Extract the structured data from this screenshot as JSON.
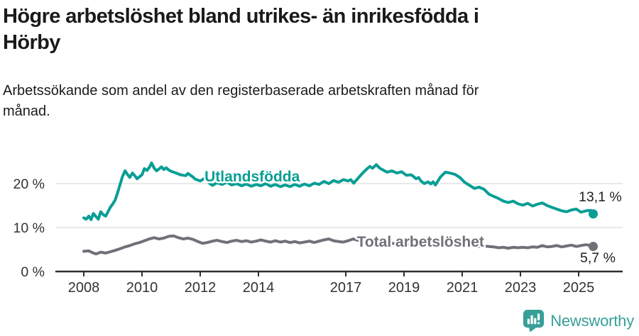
{
  "header": {
    "title_lines": [
      "Högre arbetslöshet bland utrikes- än inrikesfödda i",
      "Hörby"
    ],
    "subtitle_lines": [
      "Arbetssökande som andel av den registerbaserade arbetskraften månad för",
      "månad."
    ]
  },
  "chart_data": {
    "type": "line",
    "title": "Högre arbetslöshet bland utrikes- än inrikesfödda i Hörby",
    "subtitle": "Arbetssökande som andel av den registerbaserade arbetskraften månad för månad.",
    "unit": "%",
    "grid": "horizontal",
    "xlim": [
      2007.85,
      2026.4
    ],
    "ylim": [
      0,
      26
    ],
    "x_ticks": [
      {
        "v": 2008,
        "label": "2008"
      },
      {
        "v": 2010,
        "label": "2010"
      },
      {
        "v": 2012,
        "label": "2012"
      },
      {
        "v": 2014,
        "label": "2014"
      },
      {
        "v": 2017,
        "label": "2017"
      },
      {
        "v": 2019,
        "label": "2019"
      },
      {
        "v": 2021,
        "label": "2021"
      },
      {
        "v": 2023,
        "label": "2023"
      },
      {
        "v": 2025,
        "label": "2025"
      }
    ],
    "y_ticks": [
      {
        "v": 0,
        "label": "0 %"
      },
      {
        "v": 10,
        "label": "10 %"
      },
      {
        "v": 20,
        "label": "20 %"
      }
    ],
    "style": {
      "grid_color": "#e2e2e2",
      "axis_color": "#2f2f2f",
      "tick_label_color": "#333333",
      "end_label_color": "#1f1f1f",
      "background": "#ffffff"
    },
    "series": [
      {
        "name": "Utlandsfödda",
        "color": "#089e94",
        "label": {
          "x": 2012.15,
          "v": 20.5
        },
        "end": {
          "label": "13,1 %",
          "x": 2025.0,
          "v": 16.0
        },
        "end_value": 13.1,
        "points": [
          [
            2008.0,
            12.2
          ],
          [
            2008.08,
            11.9
          ],
          [
            2008.17,
            12.6
          ],
          [
            2008.25,
            11.8
          ],
          [
            2008.33,
            13.2
          ],
          [
            2008.42,
            12.5
          ],
          [
            2008.5,
            11.9
          ],
          [
            2008.58,
            13.6
          ],
          [
            2008.67,
            12.9
          ],
          [
            2008.75,
            12.6
          ],
          [
            2008.92,
            14.7
          ],
          [
            2009.0,
            15.4
          ],
          [
            2009.08,
            16.3
          ],
          [
            2009.17,
            18.1
          ],
          [
            2009.25,
            19.9
          ],
          [
            2009.33,
            21.6
          ],
          [
            2009.42,
            22.9
          ],
          [
            2009.5,
            22.1
          ],
          [
            2009.58,
            21.4
          ],
          [
            2009.67,
            22.4
          ],
          [
            2009.75,
            21.8
          ],
          [
            2009.83,
            21.1
          ],
          [
            2009.92,
            21.6
          ],
          [
            2010.0,
            22.0
          ],
          [
            2010.08,
            23.4
          ],
          [
            2010.17,
            23.0
          ],
          [
            2010.25,
            23.7
          ],
          [
            2010.33,
            24.7
          ],
          [
            2010.42,
            23.5
          ],
          [
            2010.5,
            22.9
          ],
          [
            2010.58,
            23.3
          ],
          [
            2010.67,
            23.8
          ],
          [
            2010.75,
            23.2
          ],
          [
            2010.83,
            23.6
          ],
          [
            2010.92,
            23.1
          ],
          [
            2011.0,
            22.8
          ],
          [
            2011.17,
            22.4
          ],
          [
            2011.33,
            22.0
          ],
          [
            2011.5,
            21.8
          ],
          [
            2011.58,
            22.3
          ],
          [
            2011.75,
            21.5
          ],
          [
            2011.83,
            21.0
          ],
          [
            2012.0,
            20.6
          ],
          [
            2012.08,
            20.9
          ],
          [
            2012.17,
            21.3
          ],
          [
            2012.33,
            20.0
          ],
          [
            2012.42,
            19.6
          ],
          [
            2012.58,
            20.2
          ],
          [
            2012.75,
            19.8
          ],
          [
            2012.92,
            20.3
          ],
          [
            2013.08,
            19.7
          ],
          [
            2013.25,
            20.0
          ],
          [
            2013.42,
            19.5
          ],
          [
            2013.58,
            19.9
          ],
          [
            2013.75,
            19.4
          ],
          [
            2013.92,
            19.8
          ],
          [
            2014.08,
            19.5
          ],
          [
            2014.25,
            20.0
          ],
          [
            2014.42,
            19.4
          ],
          [
            2014.58,
            19.8
          ],
          [
            2014.75,
            19.3
          ],
          [
            2014.92,
            19.7
          ],
          [
            2015.08,
            19.3
          ],
          [
            2015.25,
            19.8
          ],
          [
            2015.42,
            19.4
          ],
          [
            2015.58,
            19.9
          ],
          [
            2015.75,
            19.5
          ],
          [
            2015.92,
            20.1
          ],
          [
            2016.08,
            19.8
          ],
          [
            2016.25,
            20.5
          ],
          [
            2016.42,
            20.0
          ],
          [
            2016.58,
            20.7
          ],
          [
            2016.75,
            20.3
          ],
          [
            2016.92,
            20.9
          ],
          [
            2017.08,
            20.6
          ],
          [
            2017.17,
            20.9
          ],
          [
            2017.27,
            20.1
          ],
          [
            2017.42,
            21.2
          ],
          [
            2017.58,
            22.4
          ],
          [
            2017.75,
            23.5
          ],
          [
            2017.83,
            23.9
          ],
          [
            2017.92,
            23.5
          ],
          [
            2018.05,
            24.3
          ],
          [
            2018.17,
            23.5
          ],
          [
            2018.25,
            23.2
          ],
          [
            2018.42,
            22.6
          ],
          [
            2018.58,
            22.9
          ],
          [
            2018.75,
            22.4
          ],
          [
            2018.92,
            22.7
          ],
          [
            2019.08,
            21.9
          ],
          [
            2019.25,
            22.0
          ],
          [
            2019.42,
            21.1
          ],
          [
            2019.5,
            21.4
          ],
          [
            2019.58,
            20.6
          ],
          [
            2019.7,
            20.0
          ],
          [
            2019.83,
            20.4
          ],
          [
            2019.92,
            19.9
          ],
          [
            2020.0,
            20.4
          ],
          [
            2020.08,
            19.7
          ],
          [
            2020.25,
            21.5
          ],
          [
            2020.42,
            22.6
          ],
          [
            2020.58,
            22.4
          ],
          [
            2020.75,
            22.1
          ],
          [
            2020.92,
            21.4
          ],
          [
            2021.08,
            20.3
          ],
          [
            2021.25,
            19.6
          ],
          [
            2021.42,
            18.9
          ],
          [
            2021.58,
            19.2
          ],
          [
            2021.75,
            18.7
          ],
          [
            2021.92,
            17.6
          ],
          [
            2022.08,
            17.1
          ],
          [
            2022.25,
            16.6
          ],
          [
            2022.42,
            16.0
          ],
          [
            2022.58,
            15.7
          ],
          [
            2022.75,
            16.0
          ],
          [
            2022.92,
            15.4
          ],
          [
            2023.08,
            15.1
          ],
          [
            2023.25,
            15.5
          ],
          [
            2023.42,
            14.9
          ],
          [
            2023.58,
            15.3
          ],
          [
            2023.75,
            15.6
          ],
          [
            2023.92,
            15.0
          ],
          [
            2024.08,
            14.6
          ],
          [
            2024.25,
            14.2
          ],
          [
            2024.42,
            13.8
          ],
          [
            2024.58,
            13.6
          ],
          [
            2024.75,
            14.0
          ],
          [
            2024.92,
            14.2
          ],
          [
            2025.08,
            13.5
          ],
          [
            2025.25,
            13.8
          ],
          [
            2025.42,
            13.9
          ],
          [
            2025.5,
            13.1
          ]
        ]
      },
      {
        "name": "Total arbetslöshet",
        "color": "#707078",
        "label": {
          "x": 2017.38,
          "v": 5.65
        },
        "end": {
          "label": "5,7 %",
          "x": 2025.05,
          "v": 2.1
        },
        "end_value": 5.7,
        "points": [
          [
            2008.0,
            4.6
          ],
          [
            2008.17,
            4.7
          ],
          [
            2008.33,
            4.2
          ],
          [
            2008.42,
            4.0
          ],
          [
            2008.58,
            4.4
          ],
          [
            2008.75,
            4.2
          ],
          [
            2008.92,
            4.5
          ],
          [
            2009.08,
            4.8
          ],
          [
            2009.25,
            5.2
          ],
          [
            2009.42,
            5.6
          ],
          [
            2009.58,
            5.9
          ],
          [
            2009.75,
            6.3
          ],
          [
            2009.92,
            6.6
          ],
          [
            2010.08,
            7.0
          ],
          [
            2010.25,
            7.4
          ],
          [
            2010.42,
            7.7
          ],
          [
            2010.58,
            7.4
          ],
          [
            2010.75,
            7.6
          ],
          [
            2010.92,
            8.0
          ],
          [
            2011.08,
            8.1
          ],
          [
            2011.25,
            7.7
          ],
          [
            2011.42,
            7.4
          ],
          [
            2011.58,
            7.6
          ],
          [
            2011.75,
            7.3
          ],
          [
            2011.92,
            6.8
          ],
          [
            2012.08,
            6.4
          ],
          [
            2012.25,
            6.6
          ],
          [
            2012.42,
            6.9
          ],
          [
            2012.58,
            7.1
          ],
          [
            2012.75,
            6.8
          ],
          [
            2012.92,
            6.6
          ],
          [
            2013.08,
            6.9
          ],
          [
            2013.25,
            7.1
          ],
          [
            2013.42,
            6.8
          ],
          [
            2013.58,
            7.0
          ],
          [
            2013.75,
            6.7
          ],
          [
            2013.92,
            6.9
          ],
          [
            2014.08,
            7.2
          ],
          [
            2014.25,
            6.9
          ],
          [
            2014.42,
            6.7
          ],
          [
            2014.58,
            7.0
          ],
          [
            2014.75,
            6.7
          ],
          [
            2014.92,
            6.9
          ],
          [
            2015.08,
            6.6
          ],
          [
            2015.25,
            6.8
          ],
          [
            2015.42,
            6.5
          ],
          [
            2015.58,
            6.7
          ],
          [
            2015.75,
            6.9
          ],
          [
            2015.92,
            6.6
          ],
          [
            2016.08,
            6.9
          ],
          [
            2016.25,
            7.2
          ],
          [
            2016.42,
            7.4
          ],
          [
            2016.58,
            7.0
          ],
          [
            2016.75,
            6.8
          ],
          [
            2016.92,
            6.7
          ],
          [
            2017.08,
            7.0
          ],
          [
            2017.25,
            7.4
          ],
          [
            2017.42,
            7.1
          ],
          [
            2017.58,
            6.9
          ],
          [
            2017.75,
            6.8
          ],
          [
            2017.92,
            6.7
          ],
          [
            2018.08,
            6.6
          ],
          [
            2018.25,
            6.5
          ],
          [
            2018.42,
            6.6
          ],
          [
            2018.58,
            6.4
          ],
          [
            2018.75,
            6.3
          ],
          [
            2018.92,
            6.4
          ],
          [
            2019.08,
            6.2
          ],
          [
            2019.25,
            6.3
          ],
          [
            2019.42,
            6.1
          ],
          [
            2019.58,
            6.2
          ],
          [
            2019.75,
            6.0
          ],
          [
            2019.92,
            6.1
          ],
          [
            2020.08,
            6.2
          ],
          [
            2020.25,
            6.5
          ],
          [
            2020.42,
            6.4
          ],
          [
            2020.58,
            6.3
          ],
          [
            2020.75,
            6.2
          ],
          [
            2020.92,
            6.1
          ],
          [
            2021.08,
            6.0
          ],
          [
            2021.25,
            5.9
          ],
          [
            2021.42,
            5.8
          ],
          [
            2021.58,
            5.7
          ],
          [
            2021.75,
            5.8
          ],
          [
            2021.92,
            5.7
          ],
          [
            2022.08,
            5.6
          ],
          [
            2022.25,
            5.4
          ],
          [
            2022.42,
            5.5
          ],
          [
            2022.58,
            5.3
          ],
          [
            2022.75,
            5.5
          ],
          [
            2022.92,
            5.4
          ],
          [
            2023.08,
            5.5
          ],
          [
            2023.25,
            5.4
          ],
          [
            2023.42,
            5.6
          ],
          [
            2023.58,
            5.5
          ],
          [
            2023.75,
            5.9
          ],
          [
            2023.92,
            5.6
          ],
          [
            2024.08,
            5.7
          ],
          [
            2024.25,
            5.9
          ],
          [
            2024.42,
            5.6
          ],
          [
            2024.58,
            5.8
          ],
          [
            2024.75,
            6.0
          ],
          [
            2024.92,
            5.7
          ],
          [
            2025.08,
            5.9
          ],
          [
            2025.25,
            6.1
          ],
          [
            2025.42,
            5.9
          ],
          [
            2025.5,
            5.7
          ]
        ]
      }
    ]
  },
  "footer": {
    "brand": "Newsworthy",
    "color": "#379f98",
    "icon": "bar-chart-speech-bubble-icon"
  }
}
